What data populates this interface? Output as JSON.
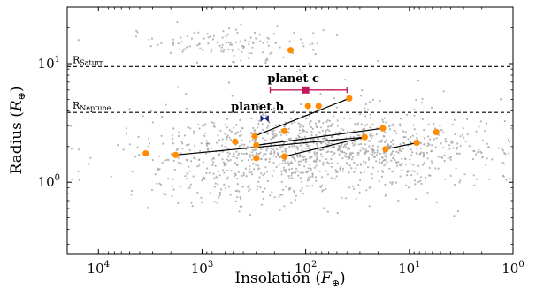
{
  "chart_data": {
    "type": "scatter",
    "title": "",
    "xlabel": "Insolation (F_⊕)",
    "ylabel": "Radius (R_⊕)",
    "xlabel_parts": {
      "main": "Insolation (",
      "var": "F",
      "sub": "⊕",
      "close": ")"
    },
    "ylabel_parts": {
      "main": "Radius (",
      "var": "R",
      "sub": "⊕",
      "close": ")"
    },
    "xscale": "log",
    "yscale": "log",
    "x_reversed": true,
    "xlim": [
      20000,
      1
    ],
    "ylim": [
      0.25,
      30
    ],
    "grid": false,
    "x_ticks": [
      {
        "value": 10000,
        "base": "10",
        "exp": "4"
      },
      {
        "value": 1000,
        "base": "10",
        "exp": "3"
      },
      {
        "value": 100,
        "base": "10",
        "exp": "2"
      },
      {
        "value": 10,
        "base": "10",
        "exp": "1"
      },
      {
        "value": 1,
        "base": "10",
        "exp": "0"
      }
    ],
    "y_ticks": [
      {
        "value": 1,
        "base": "10",
        "exp": "0"
      },
      {
        "value": 10,
        "base": "10",
        "exp": "1"
      }
    ],
    "reference_lines": [
      {
        "name": "RSaturn",
        "label_main": "R",
        "label_sub": "Saturn",
        "y": 9.45,
        "style": "dashed"
      },
      {
        "name": "RNeptune",
        "label_main": "R",
        "label_sub": "Neptune",
        "y": 3.88,
        "style": "dashed"
      }
    ],
    "highlighted_planets": [
      {
        "label": "planet c",
        "x": 100,
        "y": 6.0,
        "x_err": [
          220,
          40
        ],
        "color": "#c2185b",
        "marker": "square"
      },
      {
        "label": "planet b",
        "x": 250,
        "y": 3.45,
        "x_err": [
          270,
          230
        ],
        "color": "#1a237e",
        "marker": "bowtie"
      }
    ],
    "orange_points": [
      {
        "x": 3500,
        "y": 1.75
      },
      {
        "x": 1800,
        "y": 1.7
      },
      {
        "x": 480,
        "y": 2.2
      },
      {
        "x": 310,
        "y": 2.45
      },
      {
        "x": 300,
        "y": 2.05
      },
      {
        "x": 300,
        "y": 1.6
      },
      {
        "x": 160,
        "y": 2.7
      },
      {
        "x": 160,
        "y": 1.65
      },
      {
        "x": 140,
        "y": 13.0
      },
      {
        "x": 95,
        "y": 4.4
      },
      {
        "x": 75,
        "y": 4.4
      },
      {
        "x": 38,
        "y": 5.1
      },
      {
        "x": 27,
        "y": 2.4
      },
      {
        "x": 18,
        "y": 2.85
      },
      {
        "x": 17,
        "y": 1.9
      },
      {
        "x": 8.5,
        "y": 2.15
      },
      {
        "x": 5.5,
        "y": 2.65
      }
    ],
    "connections": [
      {
        "x1": 1800,
        "y1": 1.7,
        "x2": 27,
        "y2": 2.4
      },
      {
        "x1": 300,
        "y1": 2.05,
        "x2": 18,
        "y2": 2.85
      },
      {
        "x1": 160,
        "y1": 1.65,
        "x2": 27,
        "y2": 2.4
      },
      {
        "x1": 310,
        "y1": 2.45,
        "x2": 38,
        "y2": 5.1
      },
      {
        "x1": 17,
        "y1": 1.9,
        "x2": 8.5,
        "y2": 2.15
      }
    ],
    "background_population": {
      "name": "known planets",
      "color": "#9e9e9e",
      "count": 1400,
      "clusters": [
        {
          "weight": 0.64,
          "log_x_mean": 1.8,
          "log_x_sd": 0.82,
          "log_y_mean": 0.3,
          "log_y_sd": 0.13
        },
        {
          "weight": 0.22,
          "log_x_mean": 2.3,
          "log_x_sd": 0.85,
          "log_y_mean": 0.05,
          "log_y_sd": 0.14
        },
        {
          "weight": 0.09,
          "log_x_mean": 2.75,
          "log_x_sd": 0.45,
          "log_y_mean": 1.17,
          "log_y_sd": 0.07
        },
        {
          "weight": 0.05,
          "log_x_mean": 1.9,
          "log_x_sd": 0.8,
          "log_y_mean": 0.62,
          "log_y_sd": 0.13
        }
      ]
    },
    "colors": {
      "orange": "#ff8c00",
      "line": "#000000",
      "dashed": "#000000"
    }
  }
}
